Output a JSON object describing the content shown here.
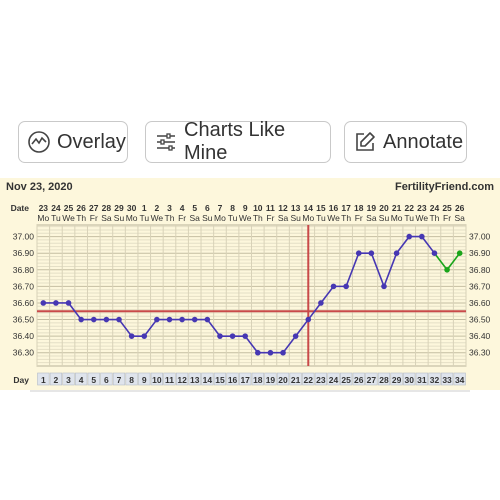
{
  "toolbar": {
    "overlay_label": "Overlay",
    "charts_like_mine_label": "Charts Like Mine",
    "annotate_label": "Annotate"
  },
  "chart_header": {
    "start_date": "Nov 23, 2020",
    "site": "FertilityFriend.com"
  },
  "chart_data": {
    "type": "line",
    "row_labels": {
      "date": "Date",
      "day": "Day"
    },
    "dates": [
      "23",
      "24",
      "25",
      "26",
      "27",
      "28",
      "29",
      "30",
      "1",
      "2",
      "3",
      "4",
      "5",
      "6",
      "7",
      "8",
      "9",
      "10",
      "11",
      "12",
      "13",
      "14",
      "15",
      "16",
      "17",
      "18",
      "19",
      "20",
      "21",
      "22",
      "23",
      "24",
      "25",
      "26"
    ],
    "weekdays": [
      "Mo",
      "Tu",
      "We",
      "Th",
      "Fr",
      "Sa",
      "Su",
      "Mo",
      "Tu",
      "We",
      "Th",
      "Fr",
      "Sa",
      "Su",
      "Mo",
      "Tu",
      "We",
      "Th",
      "Fr",
      "Sa",
      "Su",
      "Mo",
      "Tu",
      "We",
      "Th",
      "Fr",
      "Sa",
      "Su",
      "Mo",
      "Tu",
      "We",
      "Th",
      "Fr",
      "Sa"
    ],
    "days": [
      1,
      2,
      3,
      4,
      5,
      6,
      7,
      8,
      9,
      10,
      11,
      12,
      13,
      14,
      15,
      16,
      17,
      18,
      19,
      20,
      21,
      22,
      23,
      24,
      25,
      26,
      27,
      28,
      29,
      30,
      31,
      32,
      33,
      34
    ],
    "y_ticks": [
      "37.00",
      "36.90",
      "36.80",
      "36.70",
      "36.60",
      "36.50",
      "36.40",
      "36.30"
    ],
    "ylim": [
      36.22,
      37.07
    ],
    "temps": [
      36.6,
      36.6,
      36.6,
      36.5,
      36.5,
      36.5,
      36.5,
      36.4,
      36.4,
      36.5,
      36.5,
      36.5,
      36.5,
      36.5,
      36.4,
      36.4,
      36.4,
      36.3,
      36.3,
      36.3,
      36.4,
      36.5,
      36.6,
      36.7,
      36.7,
      36.9,
      36.9,
      36.7,
      36.9,
      37.0,
      37.0,
      36.9,
      36.8,
      36.9
    ],
    "main_series_color": "#4637b3",
    "projection_series_color": "#1aa51a",
    "projection_from_day": 32,
    "coverline_temp": 36.55,
    "ovulation_day": 22,
    "reference_line_color": "#c94a4a",
    "grid": true
  }
}
